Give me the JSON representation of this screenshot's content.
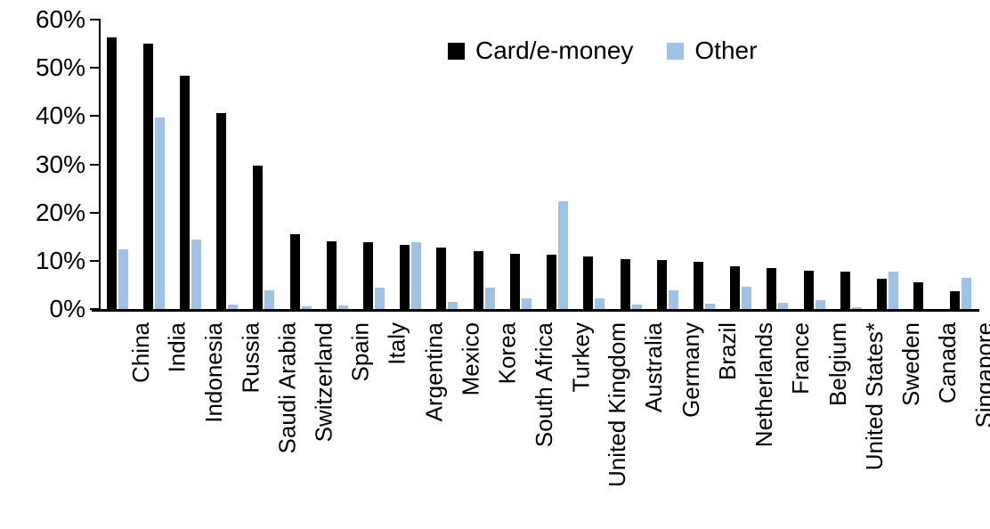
{
  "chart_data": {
    "type": "bar",
    "title": "",
    "xlabel": "",
    "ylabel": "",
    "categories": [
      "China",
      "India",
      "Indonesia",
      "Russia",
      "Saudi Arabia",
      "Switzerland",
      "Spain",
      "Italy",
      "Argentina",
      "Mexico",
      "Korea",
      "South Africa",
      "Turkey",
      "United Kingdom",
      "Australia",
      "Germany",
      "Brazil",
      "Netherlands",
      "France",
      "Belgium",
      "United States*",
      "Sweden",
      "Canada",
      "Singapore"
    ],
    "series": [
      {
        "name": "Card/e-money",
        "color": "#000000",
        "values": [
          56.3,
          55.1,
          48.3,
          40.6,
          29.7,
          15.5,
          14.0,
          13.8,
          13.2,
          12.8,
          12.0,
          11.5,
          11.3,
          10.8,
          10.4,
          10.2,
          9.8,
          8.9,
          8.5,
          7.9,
          7.7,
          6.3,
          5.6,
          3.7
        ]
      },
      {
        "name": "Other",
        "color": "#9DC3E6",
        "values": [
          12.4,
          39.7,
          14.4,
          0.9,
          3.8,
          0.6,
          0.8,
          4.5,
          13.8,
          1.4,
          4.5,
          2.3,
          22.4,
          2.2,
          0.9,
          3.9,
          1.1,
          4.7,
          1.3,
          1.9,
          0.3,
          7.8,
          0,
          6.5
        ]
      }
    ],
    "ylim": [
      0,
      60
    ],
    "ytick_step": 10,
    "yticks": [
      "0%",
      "10%",
      "20%",
      "30%",
      "40%",
      "50%",
      "60%"
    ],
    "grid": false,
    "legend_position": "top-center",
    "axis_color": "#000000",
    "background_color": "#ffffff"
  }
}
